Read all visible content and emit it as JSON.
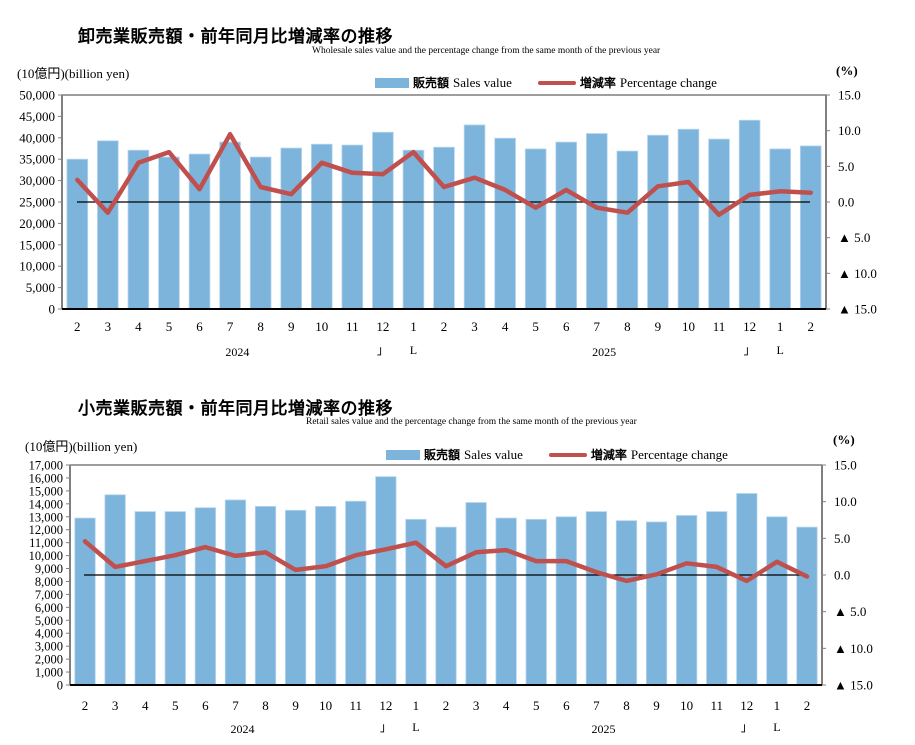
{
  "chart_data": [
    {
      "type": "bar",
      "id": "wholesale",
      "title": "卸売業販売額・前年同月比増減率の推移",
      "subtitle": "Wholesale sales value and the percentage change from the same month of the previous year",
      "ylabel": "(10億円)(billion yen)",
      "y2label": "(%)",
      "ylim": [
        0,
        50000
      ],
      "y2lim": [
        -15,
        15
      ],
      "yticks": [
        "0",
        "5,000",
        "10,000",
        "15,000",
        "20,000",
        "25,000",
        "30,000",
        "35,000",
        "40,000",
        "45,000",
        "50,000"
      ],
      "y2ticks": [
        "▲ 15.0",
        "▲ 10.0",
        "▲ 5.0",
        "0.0",
        "5.0",
        "10.0",
        "15.0"
      ],
      "legend": {
        "bar_jp": "販売額",
        "bar_en": "Sales value",
        "line_jp": "増減率",
        "line_en": "Percentage change",
        "placement": "top"
      },
      "categories": [
        "2",
        "3",
        "4",
        "5",
        "6",
        "7",
        "8",
        "9",
        "10",
        "11",
        "12",
        "1",
        "2",
        "3",
        "4",
        "5",
        "6",
        "7",
        "8",
        "9",
        "10",
        "11",
        "12",
        "1",
        "2"
      ],
      "year_labels": [
        {
          "label": "2024",
          "at_index": 5
        },
        {
          "label": "2025",
          "at_index": 17
        }
      ],
      "year_brackets": [
        {
          "left": "」",
          "right": "L",
          "between": [
            10,
            11
          ]
        },
        {
          "left": "」",
          "right": "L",
          "between": [
            22,
            23
          ]
        }
      ],
      "series": [
        {
          "name": "販売額 Sales value",
          "kind": "bar",
          "axis": "left",
          "color": "#7DB4DC",
          "values": [
            35000,
            39300,
            37100,
            35500,
            36200,
            39000,
            35500,
            37600,
            38500,
            38300,
            41300,
            37100,
            37800,
            43000,
            39900,
            37400,
            39000,
            41000,
            36900,
            40600,
            42000,
            39700,
            44100,
            37400,
            38100
          ]
        },
        {
          "name": "増減率 Percentage change",
          "kind": "line",
          "axis": "right",
          "color": "#C0504D",
          "values": [
            3.1,
            -1.5,
            5.5,
            7.0,
            1.8,
            9.5,
            2.1,
            1.1,
            5.5,
            4.1,
            3.9,
            7.0,
            2.1,
            3.4,
            1.7,
            -0.8,
            1.7,
            -0.8,
            -1.5,
            2.2,
            2.8,
            -1.8,
            1.0,
            1.5,
            1.3
          ]
        }
      ],
      "zero_line": true,
      "grid": false
    },
    {
      "type": "bar",
      "id": "retail",
      "title": "小売業販売額・前年同月比増減率の推移",
      "subtitle": "Retail sales value and the percentage change from the same month of the previous year",
      "ylabel": "(10億円)(billion yen)",
      "y2label": "(%)",
      "ylim": [
        0,
        17000
      ],
      "y2lim": [
        -15,
        15
      ],
      "yticks": [
        "0",
        "1,000",
        "2,000",
        "3,000",
        "4,000",
        "5,000",
        "6,000",
        "7,000",
        "8,000",
        "9,000",
        "10,000",
        "11,000",
        "12,000",
        "13,000",
        "14,000",
        "15,000",
        "16,000",
        "17,000"
      ],
      "y2ticks": [
        "▲ 15.0",
        "▲ 10.0",
        "▲ 5.0",
        "0.0",
        "5.0",
        "10.0",
        "15.0"
      ],
      "legend": {
        "bar_jp": "販売額",
        "bar_en": "Sales value",
        "line_jp": "増減率",
        "line_en": "Percentage change",
        "placement": "top"
      },
      "categories": [
        "2",
        "3",
        "4",
        "5",
        "6",
        "7",
        "8",
        "9",
        "10",
        "11",
        "12",
        "1",
        "2",
        "3",
        "4",
        "5",
        "6",
        "7",
        "8",
        "9",
        "10",
        "11",
        "12",
        "1",
        "2"
      ],
      "year_labels": [
        {
          "label": "2024",
          "at_index": 5
        },
        {
          "label": "2025",
          "at_index": 17
        }
      ],
      "year_brackets": [
        {
          "left": "」",
          "right": "L",
          "between": [
            10,
            11
          ]
        },
        {
          "left": "」",
          "right": "L",
          "between": [
            22,
            23
          ]
        }
      ],
      "series": [
        {
          "name": "販売額 Sales value",
          "kind": "bar",
          "axis": "left",
          "color": "#7DB4DC",
          "values": [
            12900,
            14700,
            13400,
            13400,
            13700,
            14300,
            13800,
            13500,
            13800,
            14200,
            16100,
            12800,
            12200,
            14100,
            12900,
            12800,
            13000,
            13400,
            12700,
            12600,
            13100,
            13400,
            14800,
            13000,
            12200
          ]
        },
        {
          "name": "増減率 Percentage change",
          "kind": "line",
          "axis": "right",
          "color": "#C0504D",
          "values": [
            4.6,
            1.1,
            1.9,
            2.7,
            3.8,
            2.6,
            3.1,
            0.7,
            1.2,
            2.7,
            3.5,
            4.4,
            1.2,
            3.1,
            3.4,
            1.9,
            1.9,
            0.4,
            -0.8,
            0.1,
            1.6,
            1.1,
            -0.8,
            1.8,
            -0.2
          ]
        }
      ],
      "zero_line": true,
      "grid": false
    }
  ]
}
